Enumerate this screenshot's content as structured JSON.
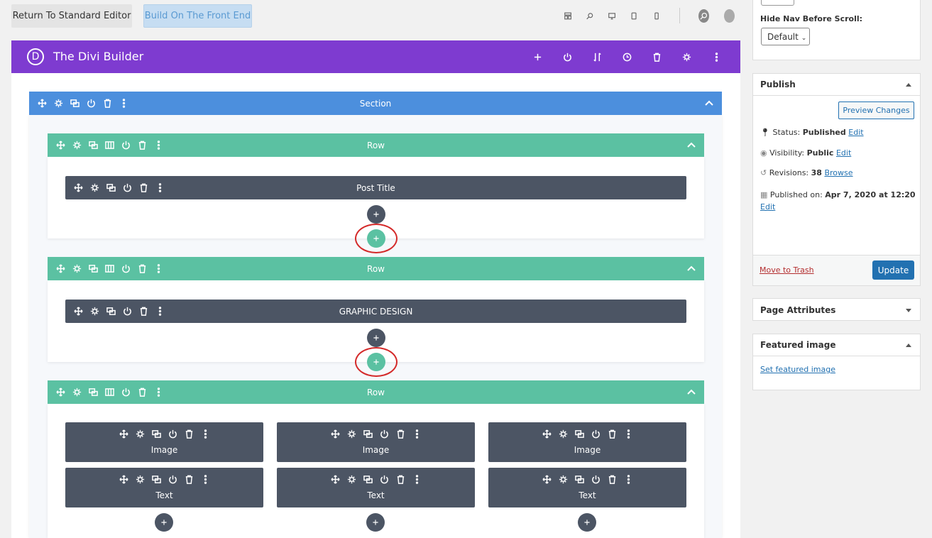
{
  "toolbar": {
    "return_button": "Return To Standard Editor",
    "front_end_button": "Build On The Front End"
  },
  "builder": {
    "logo": "D",
    "title": "The Divi Builder",
    "section": {
      "label": "Section",
      "rows": [
        {
          "label": "Row",
          "modules": [
            "Post Title"
          ]
        },
        {
          "label": "Row",
          "modules": [
            "GRAPHIC DESIGN"
          ]
        },
        {
          "label": "Row",
          "columns": [
            [
              "Image",
              "Text"
            ],
            [
              "Image",
              "Text"
            ],
            [
              "Image",
              "Text"
            ]
          ]
        }
      ]
    }
  },
  "sidebar": {
    "hide_nav": {
      "label": "Hide Nav Before Scroll:",
      "select": "Default"
    },
    "publish": {
      "title": "Publish",
      "preview_button": "Preview Changes",
      "status": {
        "label": "Status:",
        "value": "Published",
        "link": "Edit"
      },
      "visibility": {
        "label": "Visibility:",
        "value": "Public",
        "link": "Edit"
      },
      "revisions": {
        "label": "Revisions:",
        "value": "38",
        "link": "Browse"
      },
      "published_on": {
        "label": "Published on:",
        "value": "Apr 7, 2020 at 12:20",
        "link": "Edit"
      },
      "trash_link": "Move to Trash",
      "update_button": "Update"
    },
    "page_attributes": {
      "title": "Page Attributes"
    },
    "featured_image": {
      "title": "Featured image",
      "link": "Set featured image"
    }
  }
}
